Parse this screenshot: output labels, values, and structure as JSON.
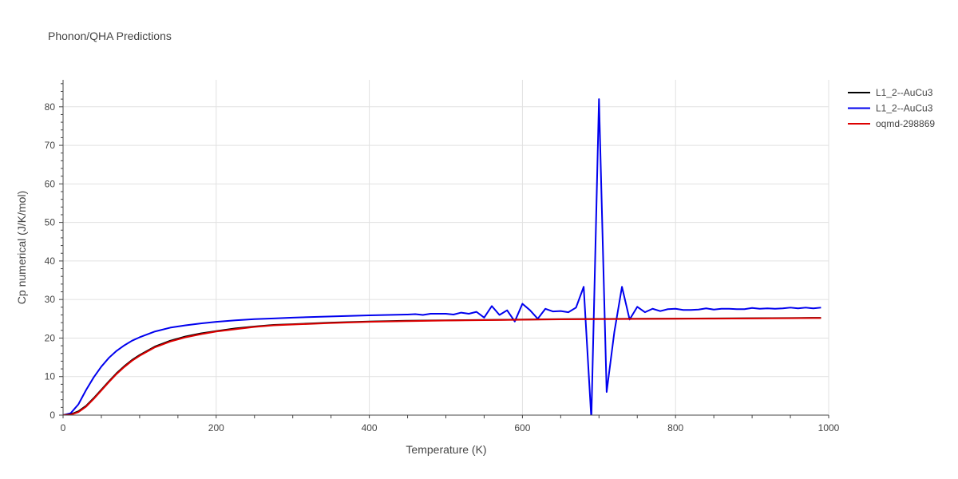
{
  "chart_data": {
    "type": "line",
    "title": "Phonon/QHA Predictions",
    "xlabel": "Temperature (K)",
    "ylabel": "Cp numerical (J/K/mol)",
    "xlim": [
      0,
      1000
    ],
    "ylim": [
      0,
      87
    ],
    "xticks": [
      0,
      200,
      400,
      600,
      800,
      1000
    ],
    "yticks": [
      0,
      10,
      20,
      30,
      40,
      50,
      60,
      70,
      80
    ],
    "grid": true,
    "legend_position": "top-right",
    "series": [
      {
        "name": "L1_2--AuCu3",
        "color": "#000000",
        "x": [
          0,
          10,
          20,
          30,
          40,
          50,
          60,
          70,
          80,
          90,
          100,
          120,
          140,
          160,
          180,
          200,
          225,
          250,
          275,
          300,
          350,
          400,
          450,
          500,
          550,
          600,
          650,
          700,
          750,
          800,
          850,
          900,
          950,
          990
        ],
        "y": [
          0,
          0.2,
          1.0,
          2.4,
          4.4,
          6.6,
          8.8,
          10.9,
          12.7,
          14.3,
          15.6,
          17.8,
          19.3,
          20.4,
          21.2,
          21.8,
          22.5,
          23.0,
          23.4,
          23.6,
          24.0,
          24.3,
          24.5,
          24.6,
          24.7,
          24.8,
          24.9,
          24.95,
          25.0,
          25.05,
          25.1,
          25.15,
          25.2,
          25.25
        ]
      },
      {
        "name": "L1_2--AuCu3",
        "color": "#0000ee",
        "x": [
          0,
          10,
          20,
          30,
          40,
          50,
          60,
          70,
          80,
          90,
          100,
          120,
          140,
          160,
          180,
          200,
          225,
          250,
          275,
          300,
          350,
          400,
          450,
          460,
          470,
          480,
          490,
          500,
          510,
          520,
          530,
          540,
          550,
          560,
          570,
          580,
          590,
          600,
          610,
          620,
          630,
          640,
          650,
          660,
          670,
          680,
          690,
          700,
          710,
          720,
          730,
          740,
          750,
          760,
          770,
          780,
          790,
          800,
          810,
          820,
          830,
          840,
          850,
          860,
          870,
          880,
          890,
          900,
          910,
          920,
          930,
          940,
          950,
          960,
          970,
          980,
          990
        ],
        "y": [
          0,
          0.5,
          2.8,
          6.5,
          9.8,
          12.6,
          14.9,
          16.7,
          18.1,
          19.3,
          20.2,
          21.7,
          22.7,
          23.3,
          23.8,
          24.2,
          24.6,
          24.9,
          25.1,
          25.3,
          25.6,
          25.9,
          26.1,
          26.2,
          26.0,
          26.3,
          26.3,
          26.3,
          26.1,
          26.6,
          26.3,
          26.8,
          25.3,
          28.3,
          26.0,
          27.2,
          24.3,
          28.9,
          27.2,
          25.0,
          27.6,
          26.9,
          27.0,
          26.7,
          27.9,
          33.3,
          -1.0,
          82.0,
          6.0,
          21.5,
          33.3,
          24.8,
          28.1,
          26.7,
          27.6,
          27.0,
          27.5,
          27.6,
          27.3,
          27.3,
          27.4,
          27.7,
          27.4,
          27.6,
          27.6,
          27.5,
          27.5,
          27.8,
          27.6,
          27.7,
          27.6,
          27.7,
          27.9,
          27.7,
          27.9,
          27.7,
          27.9
        ]
      },
      {
        "name": "oqmd-298869",
        "color": "#dd0000",
        "x": [
          0,
          10,
          20,
          30,
          40,
          50,
          60,
          70,
          80,
          90,
          100,
          120,
          140,
          160,
          180,
          200,
          225,
          250,
          275,
          300,
          350,
          400,
          450,
          500,
          550,
          600,
          650,
          700,
          750,
          800,
          850,
          900,
          950,
          990
        ],
        "y": [
          0,
          0.1,
          0.8,
          2.2,
          4.2,
          6.4,
          8.6,
          10.7,
          12.5,
          14.1,
          15.4,
          17.6,
          19.1,
          20.2,
          21.0,
          21.7,
          22.3,
          22.9,
          23.3,
          23.5,
          23.9,
          24.2,
          24.4,
          24.55,
          24.65,
          24.75,
          24.85,
          24.9,
          24.95,
          25.0,
          25.05,
          25.1,
          25.15,
          25.2
        ]
      }
    ]
  }
}
